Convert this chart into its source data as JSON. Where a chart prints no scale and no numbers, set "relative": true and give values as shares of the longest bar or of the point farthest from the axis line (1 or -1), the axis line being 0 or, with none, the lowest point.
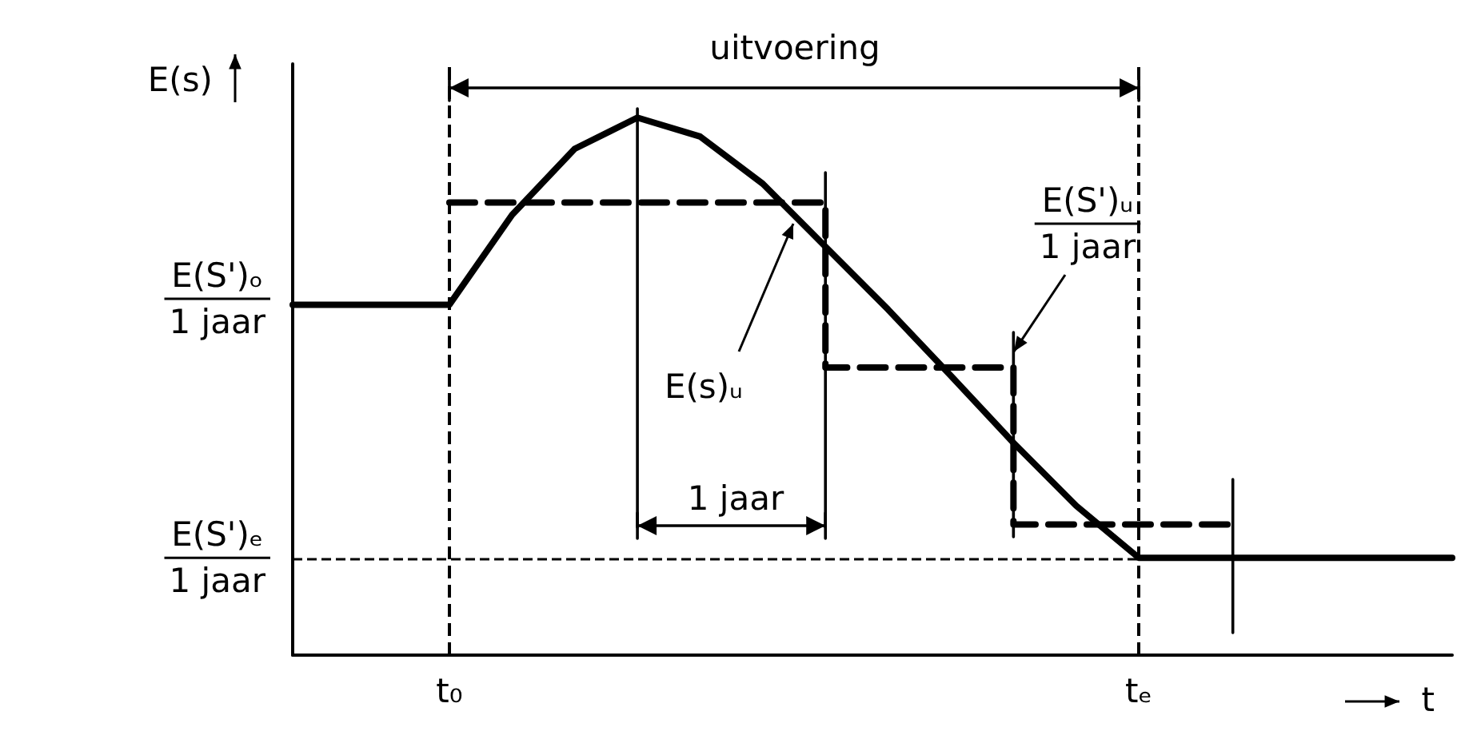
{
  "chart_data": {
    "type": "line",
    "relative": true,
    "ylabel": "E(s)",
    "xlabel": "t",
    "grid": false,
    "marker": "none",
    "categories": [
      null,
      null,
      null,
      null,
      null,
      "t₀",
      null,
      null,
      null,
      null,
      null,
      null,
      null,
      null,
      null,
      null,
      null,
      null,
      null,
      null,
      null,
      null,
      null,
      null,
      null,
      null,
      null,
      "tₑ",
      null,
      null,
      null,
      null,
      null,
      null,
      null,
      null,
      null,
      null
    ],
    "series": [
      {
        "type": "line",
        "color": "#000000",
        "line_style": "solid",
        "values": [
          0.652,
          null,
          null,
          null,
          null,
          0.652,
          null,
          0.819,
          null,
          0.942,
          null,
          1,
          null,
          0.965,
          null,
          0.877,
          null,
          0.76,
          null,
          0.643,
          null,
          0.52,
          null,
          0.395,
          null,
          0.278,
          null,
          0.181,
          null,
          null,
          null,
          null,
          null,
          null,
          null,
          null,
          null,
          0.181
        ]
      },
      {
        "type": "step",
        "color": "#000000",
        "line_style": "dashed",
        "values": [
          null,
          null,
          null,
          null,
          null,
          0.842,
          null,
          null,
          null,
          null,
          null,
          null,
          null,
          null,
          null,
          null,
          null,
          0.535,
          null,
          null,
          null,
          null,
          null,
          0.243,
          null,
          null,
          null,
          null,
          null,
          null,
          0.243,
          null,
          null,
          null,
          null,
          null,
          null,
          null
        ]
      }
    ],
    "ref_lines": [
      {
        "axis": "x",
        "value": "t₀",
        "line_style": "dashed"
      },
      {
        "axis": "x",
        "value": "tₑ",
        "line_style": "dashed"
      },
      {
        "axis": "y",
        "value": 0.181,
        "line_style": "dashed",
        "label": "E(S')ₑ\n1 jaar"
      }
    ],
    "annotations": [
      "uitvoering",
      "E(S')ₒ\n1 jaar",
      "1 jaar",
      "E(s)ᵤ",
      "E(S')ᵤ\n1 jaar"
    ]
  }
}
